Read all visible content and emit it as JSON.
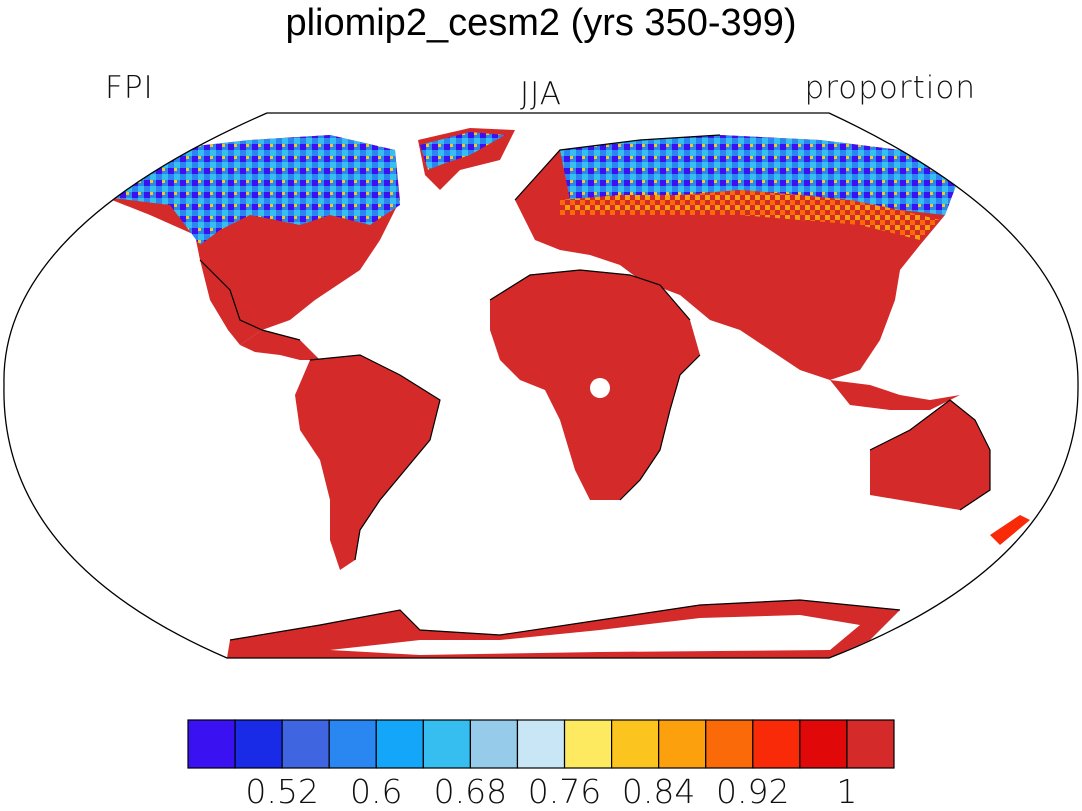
{
  "title": "pliomip2_cesm2 (yrs 350-399)",
  "left_label": "FPI",
  "center_label": "JJA",
  "right_label": "proportion",
  "colorbar": {
    "colors": [
      "#3a12f2",
      "#1a2be8",
      "#3f66e0",
      "#2a86f0",
      "#14a6f8",
      "#36bef0",
      "#96cbea",
      "#c8e6f6",
      "#fdea60",
      "#fcc41e",
      "#fca00e",
      "#fa6a08",
      "#f92a08",
      "#e00808",
      "#d42a2a"
    ],
    "tick_labels": [
      "0.52",
      "0.6",
      "0.68",
      "0.76",
      "0.84",
      "0.92",
      "1"
    ]
  },
  "land_colors": {
    "dominant": "#d42a2a",
    "secondary": "#e00808",
    "warm": "#f92a08",
    "cold_high": "#3a12f2",
    "cold_mid": "#3f66e0"
  }
}
